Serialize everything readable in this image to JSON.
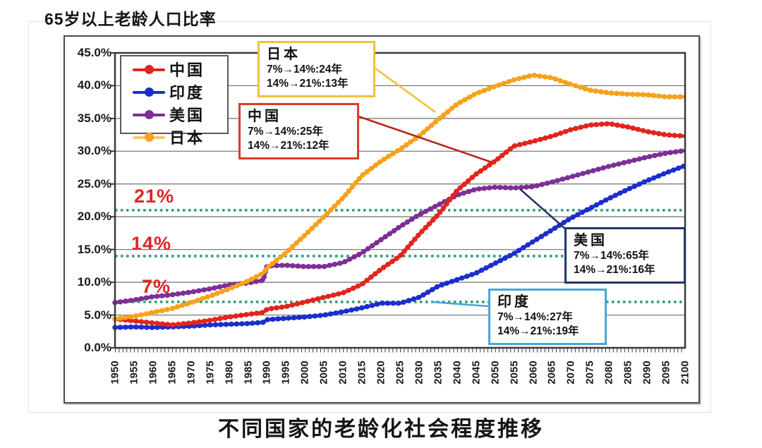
{
  "chart_data": {
    "type": "line",
    "title": "65岁以上老龄人口比率",
    "caption": "不同国家的老龄化社会程度推移",
    "ylim": [
      0,
      45
    ],
    "grid": "horizontal",
    "legend_position": "inside-top-left",
    "ytick_labels": [
      "45.0%",
      "40.0%",
      "35.0%",
      "30.0%",
      "25.0%",
      "20.0%",
      "15.0%",
      "10.0%",
      "5.0%",
      "0.0%"
    ],
    "ytick_values": [
      45,
      40,
      35,
      30,
      25,
      20,
      15,
      10,
      5,
      0
    ],
    "xtick_labels": [
      "1950",
      "1955",
      "1960",
      "1965",
      "1970",
      "1975",
      "1980",
      "1985",
      "1990",
      "1995",
      "2000",
      "2005",
      "2010",
      "2015",
      "2020",
      "2025",
      "2030",
      "2035",
      "2040",
      "2045",
      "2050",
      "2055",
      "2060",
      "2065",
      "2070",
      "2075",
      "2080",
      "2085",
      "2090",
      "2095",
      "2100"
    ],
    "x": [
      1950,
      1955,
      1960,
      1965,
      1970,
      1975,
      1980,
      1985,
      1989,
      1990,
      1995,
      2000,
      2005,
      2010,
      2015,
      2020,
      2025,
      2030,
      2035,
      2040,
      2045,
      2050,
      2055,
      2060,
      2065,
      2070,
      2075,
      2080,
      2085,
      2090,
      2095,
      2100
    ],
    "series": [
      {
        "key": "india",
        "name": "印度",
        "color": "#1b2ecc",
        "values": [
          3.1,
          3.2,
          3.1,
          3.2,
          3.3,
          3.5,
          3.6,
          3.7,
          3.9,
          4.3,
          4.5,
          4.7,
          5.0,
          5.5,
          6.1,
          6.8,
          6.8,
          7.7,
          9.4,
          10.4,
          11.4,
          12.9,
          14.4,
          16.2,
          18.0,
          19.8,
          21.3,
          22.8,
          24.2,
          25.5,
          26.7,
          27.8
        ]
      },
      {
        "key": "usa",
        "name": "美国",
        "color": "#7d2f96",
        "values": [
          6.9,
          7.3,
          7.8,
          8.1,
          8.5,
          9.0,
          9.6,
          9.9,
          10.3,
          12.5,
          12.6,
          12.4,
          12.4,
          13.0,
          14.5,
          16.5,
          18.5,
          20.3,
          21.8,
          23.3,
          24.2,
          24.5,
          24.4,
          24.6,
          25.3,
          26.1,
          26.9,
          27.7,
          28.4,
          29.1,
          29.7,
          30.1
        ]
      },
      {
        "key": "china",
        "name": "中国",
        "color": "#e2251d",
        "values": [
          4.4,
          4.1,
          3.8,
          3.5,
          3.8,
          4.2,
          4.7,
          5.1,
          5.4,
          5.9,
          6.3,
          7.0,
          7.7,
          8.4,
          9.7,
          12.0,
          14.0,
          17.3,
          20.3,
          24.0,
          26.5,
          28.5,
          30.8,
          31.5,
          32.3,
          33.3,
          34.0,
          34.2,
          33.7,
          33.0,
          32.5,
          32.3
        ]
      },
      {
        "key": "japan",
        "name": "日本",
        "color": "#f6a21d",
        "legend_line_color": "#f2ca6e",
        "values": [
          4.4,
          4.8,
          5.4,
          6.0,
          6.9,
          7.9,
          9.0,
          10.2,
          11.4,
          12.2,
          14.5,
          17.2,
          20.0,
          22.9,
          26.3,
          28.5,
          30.3,
          32.3,
          34.8,
          37.2,
          38.8,
          39.9,
          40.9,
          41.6,
          41.2,
          40.2,
          39.3,
          38.9,
          38.7,
          38.6,
          38.3,
          38.3
        ]
      }
    ],
    "thresholds": [
      {
        "label": "21%",
        "value": 21,
        "line_color": "#2f9e78",
        "label_color": "#e02424"
      },
      {
        "label": "14%",
        "value": 14,
        "line_color": "#2f9e78",
        "label_color": "#e02424"
      },
      {
        "label": "7%",
        "value": 7,
        "line_color": "#2f9e78",
        "label_color": "#e02424"
      }
    ]
  },
  "legend": {
    "items": [
      {
        "label": "中国",
        "color": "#e2251d"
      },
      {
        "label": "印度",
        "color": "#1b2ecc"
      },
      {
        "label": "美国",
        "color": "#7d2f96"
      },
      {
        "label": "日本",
        "color": "#f6a21d"
      }
    ]
  },
  "annotations": {
    "japan": {
      "title": "日本",
      "line1": "7%→14%:24年",
      "line2": "14%→21%:13年",
      "border_color": "#edc23c"
    },
    "china": {
      "title": "中国",
      "line1": "7%→14%:25年",
      "line2": "14%→21%:12年",
      "border_color": "#dd3a2c"
    },
    "usa": {
      "title": "美国",
      "line1": "7%→14%:65年",
      "line2": "14%→21%:16年",
      "border_color": "#1f3864"
    },
    "india": {
      "title": "印度",
      "line1": "7%→14%:27年",
      "line2": "14%→21%:19年",
      "border_color": "#4aa5d6"
    }
  },
  "header": {
    "title": "65岁以上老龄人口比率"
  },
  "footer": {
    "caption": "不同国家的老龄化社会程度推移"
  }
}
